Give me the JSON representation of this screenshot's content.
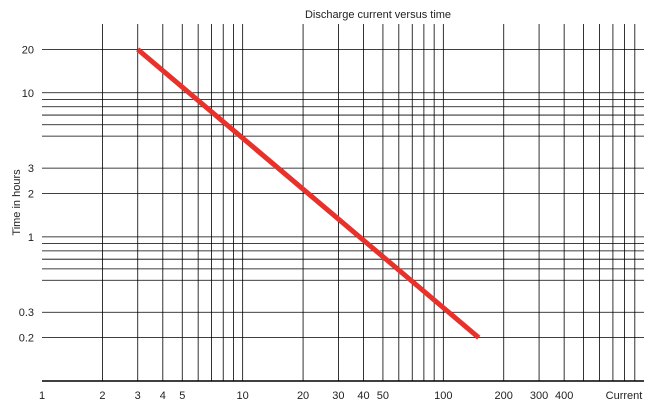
{
  "chart_data": {
    "type": "line",
    "title": "Discharge current versus time",
    "xlabel": "Current",
    "ylabel": "Time in hours",
    "x_scale": "log",
    "y_scale": "log",
    "xlim": [
      1,
      1000
    ],
    "ylim": [
      0.1,
      30
    ],
    "grid": true,
    "x_ticks": [
      {
        "value": 1,
        "label": "1"
      },
      {
        "value": 2,
        "label": "2"
      },
      {
        "value": 3,
        "label": "3"
      },
      {
        "value": 4,
        "label": "4"
      },
      {
        "value": 5,
        "label": "5"
      },
      {
        "value": 10,
        "label": "10"
      },
      {
        "value": 20,
        "label": "20"
      },
      {
        "value": 30,
        "label": "30"
      },
      {
        "value": 40,
        "label": "40"
      },
      {
        "value": 50,
        "label": "50"
      },
      {
        "value": 100,
        "label": "100"
      },
      {
        "value": 200,
        "label": "200"
      },
      {
        "value": 300,
        "label": "300"
      },
      {
        "value": 400,
        "label": "400"
      }
    ],
    "y_ticks": [
      {
        "value": 20,
        "label": "20"
      },
      {
        "value": 10,
        "label": "10"
      },
      {
        "value": 3,
        "label": "3"
      },
      {
        "value": 2,
        "label": "2"
      },
      {
        "value": 1,
        "label": "1"
      },
      {
        "value": 0.3,
        "label": "0.3"
      },
      {
        "value": 0.2,
        "label": "0.2"
      }
    ],
    "series": [
      {
        "color": "#e8312a",
        "points": [
          {
            "x": 3,
            "y": 20
          },
          {
            "x": 150,
            "y": 0.2
          }
        ]
      }
    ]
  }
}
